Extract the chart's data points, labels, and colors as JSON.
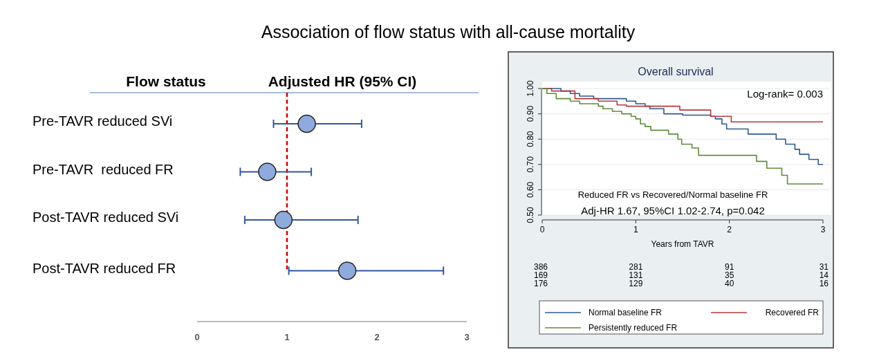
{
  "chart_data": [
    {
      "type": "scatter",
      "orientation": "horizontal",
      "title": "Association of flow status with all-cause mortality",
      "ylabel": "Flow status",
      "xlabel": "Adjusted HR (95% CI)",
      "categories": [
        "Pre-TAVR reduced SVi",
        "Pre-TAVR  reduced FR",
        "Post-TAVR reduced SVi",
        "Post-TAVR reduced FR"
      ],
      "values": [
        1.22,
        0.78,
        0.96,
        1.67
      ],
      "errors": [
        [
          0.85,
          1.83
        ],
        [
          0.48,
          1.27
        ],
        [
          0.53,
          1.79
        ],
        [
          1.02,
          2.74
        ]
      ],
      "color": "#8faadc",
      "marker": "circle",
      "xlim": [
        0,
        3
      ],
      "xticks": [
        0,
        1,
        2,
        3
      ],
      "ref_lines": [
        {
          "axis": "x",
          "value": 1,
          "color": "#cc0000",
          "line_style": "dashed"
        }
      ]
    },
    {
      "type": "step",
      "title": "Overall survival",
      "xlabel": "Years from TAVR",
      "xlim": [
        0,
        3
      ],
      "xticks": [
        0,
        1,
        2,
        3
      ],
      "ylim": [
        0.5,
        1.0
      ],
      "yticks": [
        {
          "value": 0.5,
          "label": "0.50"
        },
        {
          "value": 0.6,
          "label": "0.60"
        },
        {
          "value": 0.7,
          "label": "0.70"
        },
        {
          "value": 0.8,
          "label": "0.80"
        },
        {
          "value": 0.9,
          "label": "0.90"
        },
        {
          "value": 1.0,
          "label": "1.00"
        }
      ],
      "grid": "y",
      "legend": "bottom",
      "line_style": "solid",
      "series": [
        {
          "name": "Normal baseline FR",
          "color": "#2c5b8e",
          "x": [
            0,
            0.2,
            0.3,
            0.4,
            0.55,
            0.9,
            1.0,
            1.1,
            1.15,
            1.3,
            1.5,
            1.8,
            1.85,
            1.92,
            1.97,
            2.2,
            2.5,
            2.6,
            2.7,
            2.75,
            2.85,
            2.95,
            3.0
          ],
          "values": [
            1.0,
            0.99,
            0.98,
            0.97,
            0.96,
            0.95,
            0.94,
            0.93,
            0.92,
            0.9,
            0.895,
            0.89,
            0.88,
            0.86,
            0.84,
            0.82,
            0.8,
            0.78,
            0.76,
            0.74,
            0.72,
            0.7,
            0.7
          ]
        },
        {
          "name": "Recovered FR",
          "color": "#b23a3a",
          "x": [
            0,
            0.1,
            0.35,
            0.6,
            0.8,
            0.9,
            1.47,
            1.8,
            2.02,
            3.0
          ],
          "values": [
            1.0,
            0.99,
            0.96,
            0.95,
            0.935,
            0.93,
            0.915,
            0.89,
            0.868,
            0.868
          ]
        },
        {
          "name": "Persistently reduced FR",
          "color": "#5e8c3a",
          "x": [
            0,
            0.05,
            0.15,
            0.3,
            0.4,
            0.6,
            0.65,
            0.75,
            0.85,
            0.95,
            1.0,
            1.05,
            1.1,
            1.16,
            1.35,
            1.45,
            1.49,
            1.6,
            1.67,
            2.29,
            2.4,
            2.56,
            2.62,
            3.0
          ],
          "values": [
            1.0,
            0.98,
            0.96,
            0.95,
            0.94,
            0.93,
            0.92,
            0.91,
            0.9,
            0.89,
            0.88,
            0.86,
            0.85,
            0.835,
            0.82,
            0.8,
            0.78,
            0.765,
            0.736,
            0.712,
            0.685,
            0.657,
            0.623,
            0.623
          ]
        }
      ],
      "annotations": [
        "Log-rank= 0.003",
        "Reduced FR vs Recovered/Normal baseline FR",
        "Adj-HR 1.67, 95%CI 1.02-2.74, p=0.042",
        "386",
        "281",
        "91",
        "31",
        "169",
        "131",
        "35",
        "14",
        "176",
        "129",
        "40",
        "16"
      ]
    }
  ]
}
